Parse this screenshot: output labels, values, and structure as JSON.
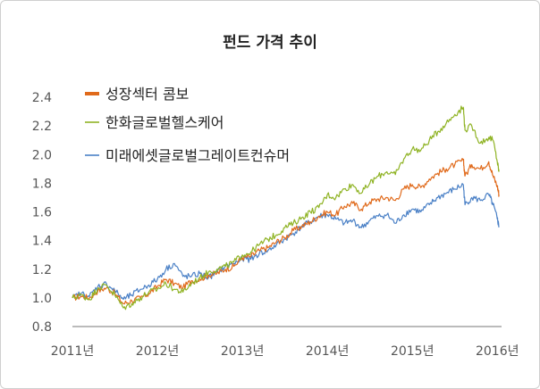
{
  "chart_data": {
    "type": "line",
    "title": "펀드 가격 추이",
    "xlabel": "",
    "ylabel": "",
    "xlim": [
      2011.0,
      2016.05
    ],
    "ylim": [
      0.8,
      2.4
    ],
    "x_ticks": [
      2011,
      2012,
      2013,
      2014,
      2015,
      2016
    ],
    "x_tick_labels": [
      "2011년",
      "2012년",
      "2013년",
      "2014년",
      "2015년",
      "2016년"
    ],
    "y_ticks": [
      0.8,
      1.0,
      1.2,
      1.4,
      1.6,
      1.8,
      2.0,
      2.2,
      2.4
    ],
    "y_tick_labels": [
      "0.8",
      "1.0",
      "1.2",
      "1.4",
      "1.6",
      "1.8",
      "2.0",
      "2.2",
      "2.4"
    ],
    "grid": false,
    "legend_position": "top-left",
    "series": [
      {
        "name": "성장섹터 콤보",
        "color": "#e06a1b",
        "x": [
          2011.0,
          2011.1,
          2011.2,
          2011.3,
          2011.4,
          2011.5,
          2011.6,
          2011.7,
          2011.8,
          2011.9,
          2012.0,
          2012.1,
          2012.2,
          2012.3,
          2012.4,
          2012.5,
          2012.6,
          2012.7,
          2012.8,
          2012.9,
          2013.0,
          2013.1,
          2013.2,
          2013.3,
          2013.4,
          2013.5,
          2013.6,
          2013.7,
          2013.8,
          2013.9,
          2014.0,
          2014.1,
          2014.2,
          2014.3,
          2014.4,
          2014.5,
          2014.6,
          2014.7,
          2014.8,
          2014.9,
          2015.0,
          2015.1,
          2015.2,
          2015.3,
          2015.4,
          2015.5,
          2015.6,
          2015.62,
          2015.7,
          2015.8,
          2015.9,
          2015.95,
          2016.0,
          2016.02
        ],
        "y": [
          1.0,
          1.01,
          1.0,
          1.05,
          1.07,
          1.03,
          0.96,
          0.98,
          1.0,
          1.03,
          1.08,
          1.13,
          1.1,
          1.07,
          1.12,
          1.13,
          1.16,
          1.17,
          1.2,
          1.22,
          1.28,
          1.29,
          1.33,
          1.35,
          1.39,
          1.42,
          1.47,
          1.5,
          1.53,
          1.57,
          1.6,
          1.58,
          1.64,
          1.66,
          1.62,
          1.67,
          1.69,
          1.7,
          1.68,
          1.76,
          1.79,
          1.77,
          1.83,
          1.87,
          1.9,
          1.93,
          1.96,
          1.85,
          1.93,
          1.9,
          1.95,
          1.85,
          1.78,
          1.72
        ]
      },
      {
        "name": "한화글로벌헬스케어",
        "color": "#8fb324",
        "x": [
          2011.0,
          2011.1,
          2011.2,
          2011.3,
          2011.4,
          2011.5,
          2011.6,
          2011.7,
          2011.8,
          2011.9,
          2012.0,
          2012.1,
          2012.2,
          2012.3,
          2012.4,
          2012.5,
          2012.6,
          2012.7,
          2012.8,
          2012.9,
          2013.0,
          2013.1,
          2013.2,
          2013.3,
          2013.4,
          2013.5,
          2013.6,
          2013.7,
          2013.8,
          2013.9,
          2014.0,
          2014.1,
          2014.2,
          2014.3,
          2014.4,
          2014.5,
          2014.6,
          2014.7,
          2014.8,
          2014.9,
          2015.0,
          2015.1,
          2015.2,
          2015.3,
          2015.4,
          2015.5,
          2015.6,
          2015.62,
          2015.7,
          2015.8,
          2015.9,
          2015.95,
          2016.0,
          2016.02
        ],
        "y": [
          1.0,
          1.02,
          0.99,
          1.07,
          1.09,
          1.02,
          0.93,
          0.96,
          1.0,
          1.04,
          1.06,
          1.1,
          1.06,
          1.04,
          1.1,
          1.14,
          1.18,
          1.2,
          1.22,
          1.25,
          1.3,
          1.32,
          1.37,
          1.41,
          1.44,
          1.49,
          1.52,
          1.56,
          1.6,
          1.63,
          1.72,
          1.7,
          1.76,
          1.79,
          1.73,
          1.8,
          1.85,
          1.88,
          1.86,
          1.97,
          2.04,
          2.03,
          2.1,
          2.16,
          2.22,
          2.28,
          2.33,
          2.17,
          2.2,
          2.08,
          2.12,
          2.1,
          1.95,
          1.88
        ]
      },
      {
        "name": "미래에셋글로벌그레이트컨슈머",
        "color": "#4a80c6",
        "x": [
          2011.0,
          2011.1,
          2011.2,
          2011.3,
          2011.4,
          2011.5,
          2011.6,
          2011.7,
          2011.8,
          2011.9,
          2012.0,
          2012.1,
          2012.2,
          2012.3,
          2012.4,
          2012.5,
          2012.6,
          2012.7,
          2012.8,
          2012.9,
          2013.0,
          2013.1,
          2013.2,
          2013.3,
          2013.4,
          2013.5,
          2013.6,
          2013.7,
          2013.8,
          2013.9,
          2014.0,
          2014.1,
          2014.2,
          2014.3,
          2014.4,
          2014.5,
          2014.6,
          2014.7,
          2014.8,
          2014.9,
          2015.0,
          2015.1,
          2015.2,
          2015.3,
          2015.4,
          2015.5,
          2015.6,
          2015.62,
          2015.7,
          2015.8,
          2015.9,
          2015.95,
          2016.0,
          2016.02
        ],
        "y": [
          1.0,
          1.03,
          1.01,
          1.08,
          1.1,
          1.05,
          0.99,
          1.02,
          1.06,
          1.09,
          1.13,
          1.2,
          1.24,
          1.15,
          1.15,
          1.17,
          1.14,
          1.18,
          1.22,
          1.24,
          1.27,
          1.27,
          1.31,
          1.33,
          1.37,
          1.41,
          1.45,
          1.5,
          1.53,
          1.57,
          1.58,
          1.55,
          1.52,
          1.54,
          1.49,
          1.54,
          1.57,
          1.58,
          1.52,
          1.58,
          1.62,
          1.6,
          1.65,
          1.7,
          1.73,
          1.76,
          1.79,
          1.65,
          1.7,
          1.68,
          1.72,
          1.65,
          1.55,
          1.5
        ]
      }
    ]
  }
}
